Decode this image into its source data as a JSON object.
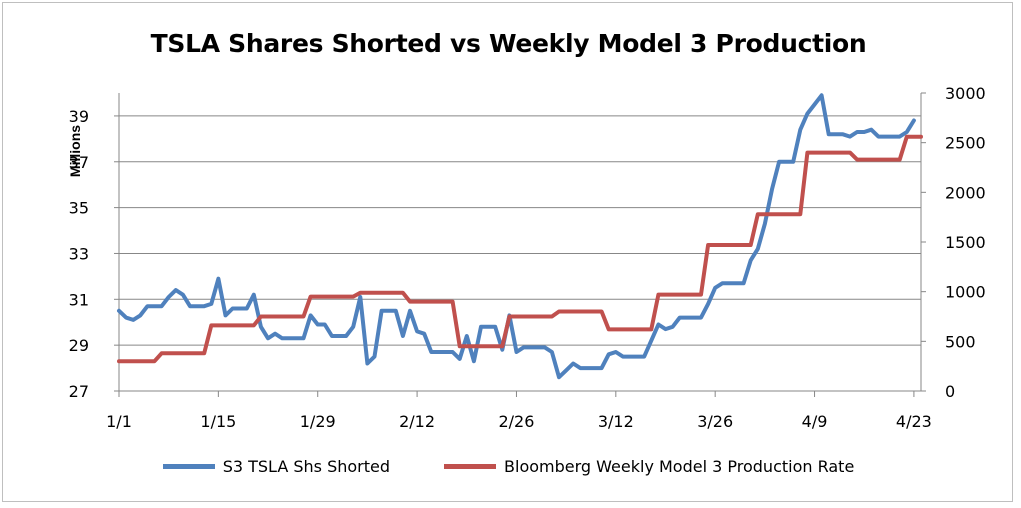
{
  "chart_data": {
    "type": "line",
    "title": "TSLA Shares Shorted vs Weekly Model 3 Production",
    "ylabel_left": "Millions",
    "ylabel_right": "",
    "xlabel": "",
    "x_tick_labels": [
      "1/1",
      "1/15",
      "1/29",
      "2/12",
      "2/26",
      "3/12",
      "3/26",
      "4/9",
      "4/23"
    ],
    "x_tick_days": [
      0,
      14,
      28,
      42,
      56,
      70,
      84,
      98,
      112
    ],
    "ylim_left": [
      27,
      40
    ],
    "yticks_left": [
      "27",
      "29",
      "31",
      "33",
      "35",
      "37",
      "39"
    ],
    "ylim_right": [
      0,
      3000
    ],
    "yticks_right": [
      "0",
      "500",
      "1000",
      "1500",
      "2000",
      "2500",
      "3000"
    ],
    "grid": "horizontal",
    "legend_position": "bottom",
    "series": [
      {
        "name": "S3 TSLA Shs Shorted",
        "axis": "left",
        "color": "#4f81bd",
        "points": [
          [
            0,
            30.5
          ],
          [
            1,
            30.2
          ],
          [
            2,
            30.1
          ],
          [
            3,
            30.3
          ],
          [
            4,
            30.7
          ],
          [
            5,
            30.7
          ],
          [
            6,
            30.7
          ],
          [
            7,
            31.1
          ],
          [
            8,
            31.4
          ],
          [
            9,
            31.2
          ],
          [
            10,
            30.7
          ],
          [
            11,
            30.7
          ],
          [
            12,
            30.7
          ],
          [
            13,
            30.8
          ],
          [
            14,
            31.9
          ],
          [
            15,
            30.3
          ],
          [
            16,
            30.6
          ],
          [
            17,
            30.6
          ],
          [
            18,
            30.6
          ],
          [
            19,
            31.2
          ],
          [
            20,
            29.8
          ],
          [
            21,
            29.3
          ],
          [
            22,
            29.5
          ],
          [
            23,
            29.3
          ],
          [
            24,
            29.3
          ],
          [
            25,
            29.3
          ],
          [
            26,
            29.3
          ],
          [
            27,
            30.3
          ],
          [
            28,
            29.9
          ],
          [
            29,
            29.9
          ],
          [
            30,
            29.4
          ],
          [
            31,
            29.4
          ],
          [
            32,
            29.4
          ],
          [
            33,
            29.8
          ],
          [
            34,
            31.1
          ],
          [
            35,
            28.2
          ],
          [
            36,
            28.5
          ],
          [
            37,
            30.5
          ],
          [
            38,
            30.5
          ],
          [
            39,
            30.5
          ],
          [
            40,
            29.4
          ],
          [
            41,
            30.5
          ],
          [
            42,
            29.6
          ],
          [
            43,
            29.5
          ],
          [
            44,
            28.7
          ],
          [
            45,
            28.7
          ],
          [
            46,
            28.7
          ],
          [
            47,
            28.7
          ],
          [
            48,
            28.4
          ],
          [
            49,
            29.4
          ],
          [
            50,
            28.3
          ],
          [
            51,
            29.8
          ],
          [
            52,
            29.8
          ],
          [
            53,
            29.8
          ],
          [
            54,
            28.8
          ],
          [
            55,
            30.3
          ],
          [
            56,
            28.7
          ],
          [
            57,
            28.9
          ],
          [
            58,
            28.9
          ],
          [
            59,
            28.9
          ],
          [
            60,
            28.9
          ],
          [
            61,
            28.7
          ],
          [
            62,
            27.6
          ],
          [
            63,
            27.9
          ],
          [
            64,
            28.2
          ],
          [
            65,
            28.0
          ],
          [
            66,
            28.0
          ],
          [
            67,
            28.0
          ],
          [
            68,
            28.0
          ],
          [
            69,
            28.6
          ],
          [
            70,
            28.7
          ],
          [
            71,
            28.5
          ],
          [
            72,
            28.5
          ],
          [
            73,
            28.5
          ],
          [
            74,
            28.5
          ],
          [
            75,
            29.2
          ],
          [
            76,
            29.9
          ],
          [
            77,
            29.7
          ],
          [
            78,
            29.8
          ],
          [
            79,
            30.2
          ],
          [
            80,
            30.2
          ],
          [
            81,
            30.2
          ],
          [
            82,
            30.2
          ],
          [
            83,
            30.8
          ],
          [
            84,
            31.5
          ],
          [
            85,
            31.7
          ],
          [
            86,
            31.7
          ],
          [
            87,
            31.7
          ],
          [
            88,
            31.7
          ],
          [
            89,
            32.7
          ],
          [
            90,
            33.2
          ],
          [
            91,
            34.3
          ],
          [
            92,
            35.8
          ],
          [
            93,
            37.0
          ],
          [
            94,
            37.0
          ],
          [
            95,
            37.0
          ],
          [
            96,
            38.4
          ],
          [
            97,
            39.1
          ],
          [
            98,
            39.5
          ],
          [
            99,
            39.9
          ],
          [
            100,
            38.2
          ],
          [
            101,
            38.2
          ],
          [
            102,
            38.2
          ],
          [
            103,
            38.1
          ],
          [
            104,
            38.3
          ],
          [
            105,
            38.3
          ],
          [
            106,
            38.4
          ],
          [
            107,
            38.1
          ],
          [
            108,
            38.1
          ],
          [
            109,
            38.1
          ],
          [
            110,
            38.1
          ],
          [
            111,
            38.3
          ],
          [
            112,
            38.8
          ]
        ]
      },
      {
        "name": "Bloomberg Weekly Model 3 Production Rate",
        "axis": "right",
        "color": "#c0504d",
        "points": [
          [
            0,
            300
          ],
          [
            5,
            300
          ],
          [
            6,
            380
          ],
          [
            12,
            380
          ],
          [
            13,
            660
          ],
          [
            19,
            660
          ],
          [
            20,
            750
          ],
          [
            26,
            750
          ],
          [
            27,
            950
          ],
          [
            33,
            950
          ],
          [
            34,
            990
          ],
          [
            40,
            990
          ],
          [
            41,
            900
          ],
          [
            47,
            900
          ],
          [
            48,
            450
          ],
          [
            54,
            450
          ],
          [
            55,
            750
          ],
          [
            61,
            750
          ],
          [
            62,
            800
          ],
          [
            68,
            800
          ],
          [
            69,
            620
          ],
          [
            75,
            620
          ],
          [
            76,
            970
          ],
          [
            82,
            970
          ],
          [
            83,
            1470
          ],
          [
            89,
            1470
          ],
          [
            90,
            1780
          ],
          [
            96,
            1780
          ],
          [
            97,
            2400
          ],
          [
            103,
            2400
          ],
          [
            104,
            2330
          ],
          [
            110,
            2330
          ],
          [
            111,
            2560
          ],
          [
            113,
            2560
          ]
        ]
      }
    ]
  }
}
